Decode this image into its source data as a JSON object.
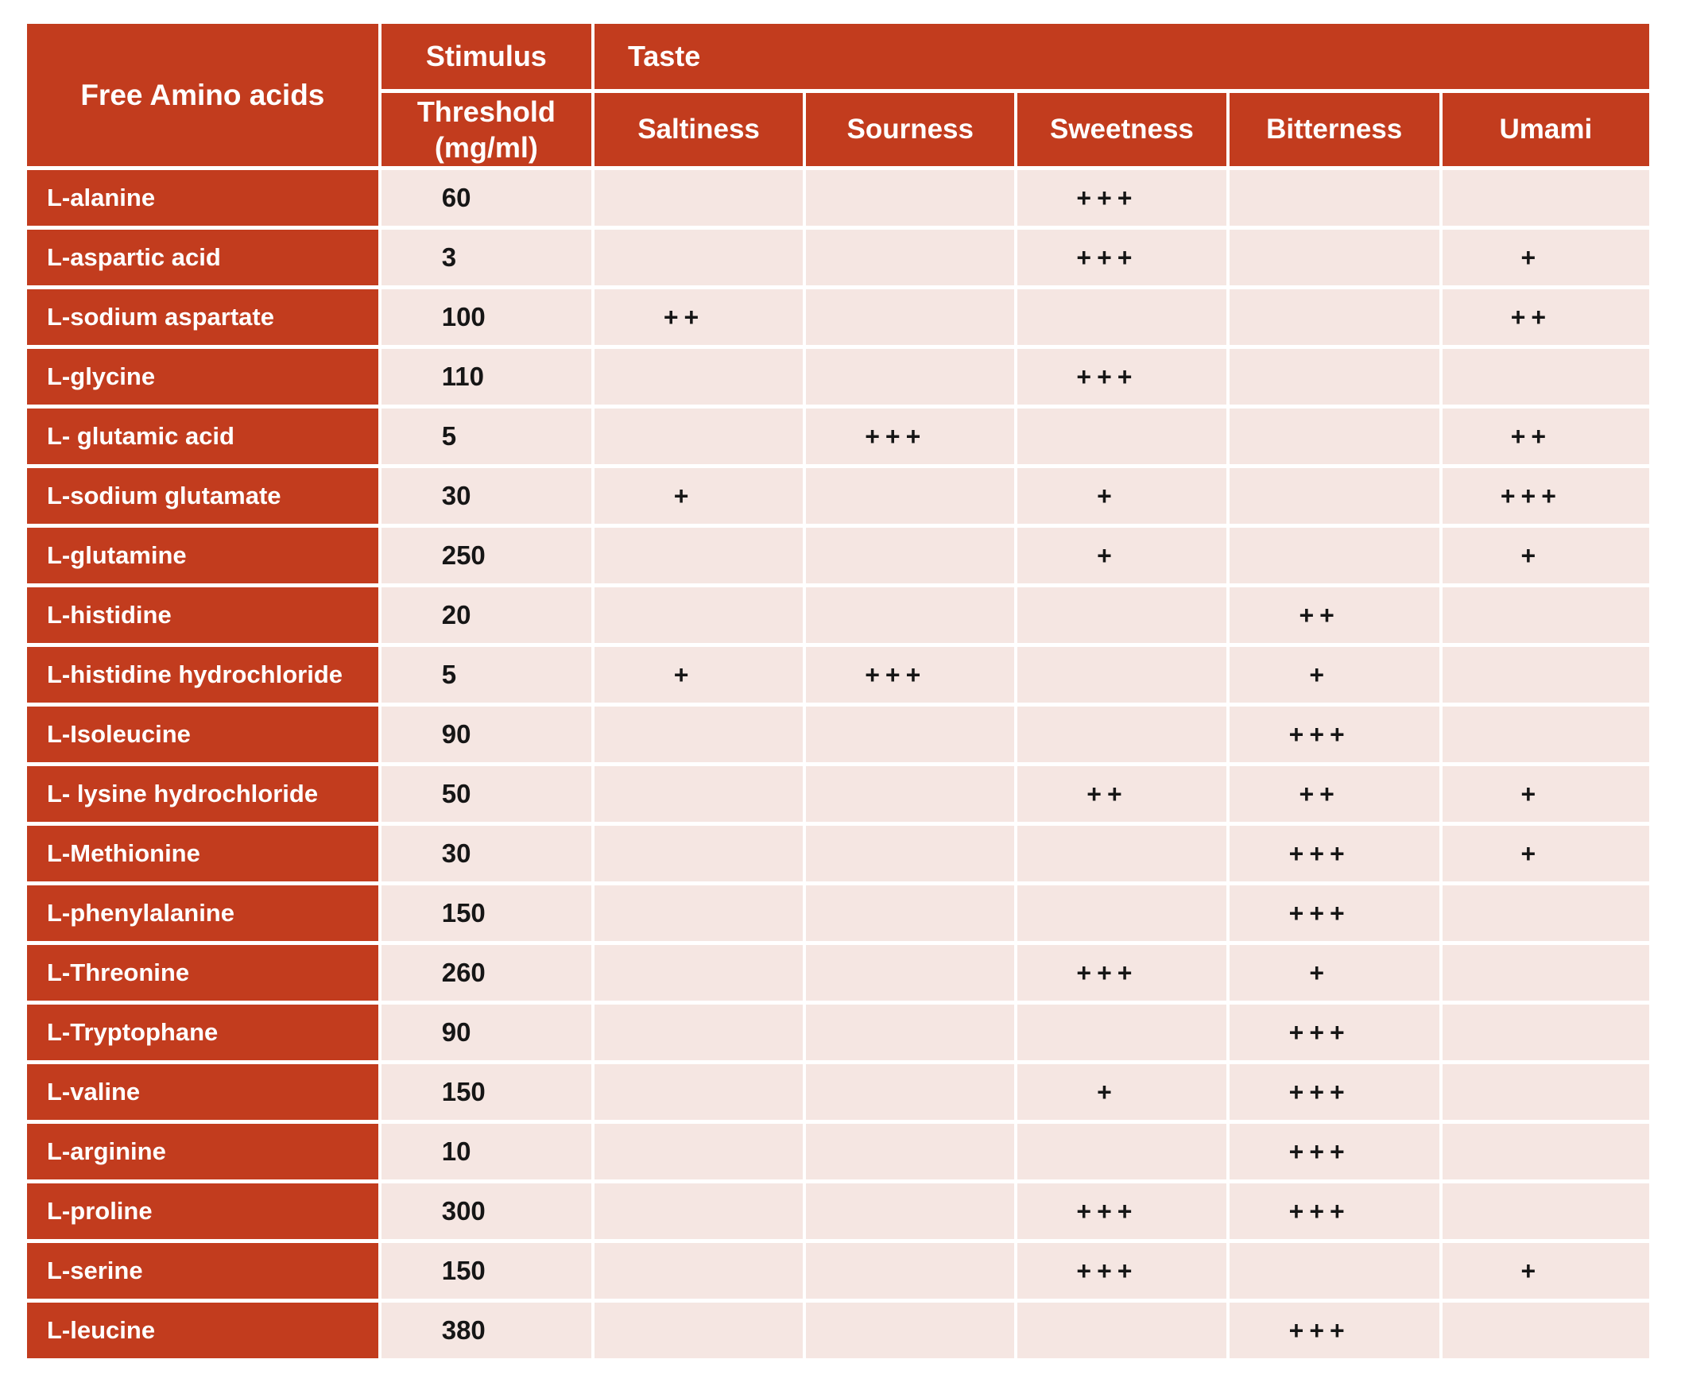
{
  "colors": {
    "header_bg": "#C23C1E",
    "cell_bg": "#F5E6E2",
    "header_text": "#FFFFFF",
    "cell_text": "#161616"
  },
  "table": {
    "header": {
      "amino_acids_label": "Free Amino acids",
      "stimulus_label": "Stimulus",
      "threshold_label": "Threshold",
      "threshold_unit": "(mg/ml)",
      "taste_group_label": "Taste",
      "taste_columns": [
        "Saltiness",
        "Sourness",
        "Sweetness",
        "Bitterness",
        "Umami"
      ]
    },
    "rows": [
      {
        "name": "L-alanine",
        "threshold": "60",
        "saltiness": "",
        "sourness": "",
        "sweetness": "+++",
        "bitterness": "",
        "umami": ""
      },
      {
        "name": "L-aspartic acid",
        "threshold": "3",
        "saltiness": "",
        "sourness": "",
        "sweetness": "+++",
        "bitterness": "",
        "umami": "+"
      },
      {
        "name": "L-sodium aspartate",
        "threshold": "100",
        "saltiness": "++",
        "sourness": "",
        "sweetness": "",
        "bitterness": "",
        "umami": "++"
      },
      {
        "name": "L-glycine",
        "threshold": "110",
        "saltiness": "",
        "sourness": "",
        "sweetness": "+++",
        "bitterness": "",
        "umami": ""
      },
      {
        "name": "L- glutamic acid",
        "threshold": "5",
        "saltiness": "",
        "sourness": "+++",
        "sweetness": "",
        "bitterness": "",
        "umami": "++"
      },
      {
        "name": "L-sodium glutamate",
        "threshold": "30",
        "saltiness": "+",
        "sourness": "",
        "sweetness": "+",
        "bitterness": "",
        "umami": "+++"
      },
      {
        "name": "L-glutamine",
        "threshold": "250",
        "saltiness": "",
        "sourness": "",
        "sweetness": "+",
        "bitterness": "",
        "umami": "+"
      },
      {
        "name": "L-histidine",
        "threshold": "20",
        "saltiness": "",
        "sourness": "",
        "sweetness": "",
        "bitterness": "++",
        "umami": ""
      },
      {
        "name": "L-histidine hydrochloride",
        "threshold": "5",
        "saltiness": "+",
        "sourness": "+++",
        "sweetness": "",
        "bitterness": "+",
        "umami": ""
      },
      {
        "name": "L-Isoleucine",
        "threshold": "90",
        "saltiness": "",
        "sourness": "",
        "sweetness": "",
        "bitterness": "+++",
        "umami": ""
      },
      {
        "name": "L- lysine hydrochloride",
        "threshold": "50",
        "saltiness": "",
        "sourness": "",
        "sweetness": "++",
        "bitterness": "++",
        "umami": "+"
      },
      {
        "name": "L-Methionine",
        "threshold": "30",
        "saltiness": "",
        "sourness": "",
        "sweetness": "",
        "bitterness": "+++",
        "umami": "+"
      },
      {
        "name": "L-phenylalanine",
        "threshold": "150",
        "saltiness": "",
        "sourness": "",
        "sweetness": "",
        "bitterness": "+++",
        "umami": ""
      },
      {
        "name": "L-Threonine",
        "threshold": "260",
        "saltiness": "",
        "sourness": "",
        "sweetness": "+++",
        "bitterness": "+",
        "umami": ""
      },
      {
        "name": "L-Tryptophane",
        "threshold": "90",
        "saltiness": "",
        "sourness": "",
        "sweetness": "",
        "bitterness": "+++",
        "umami": ""
      },
      {
        "name": "L-valine",
        "threshold": "150",
        "saltiness": "",
        "sourness": "",
        "sweetness": "+",
        "bitterness": "+++",
        "umami": ""
      },
      {
        "name": "L-arginine",
        "threshold": "10",
        "saltiness": "",
        "sourness": "",
        "sweetness": "",
        "bitterness": "+++",
        "umami": ""
      },
      {
        "name": "L-proline",
        "threshold": "300",
        "saltiness": "",
        "sourness": "",
        "sweetness": "+++",
        "bitterness": "+++",
        "umami": ""
      },
      {
        "name": "L-serine",
        "threshold": "150",
        "saltiness": "",
        "sourness": "",
        "sweetness": "+++",
        "bitterness": "",
        "umami": "+"
      },
      {
        "name": "L-leucine",
        "threshold": "380",
        "saltiness": "",
        "sourness": "",
        "sweetness": "",
        "bitterness": "+++",
        "umami": ""
      }
    ]
  }
}
